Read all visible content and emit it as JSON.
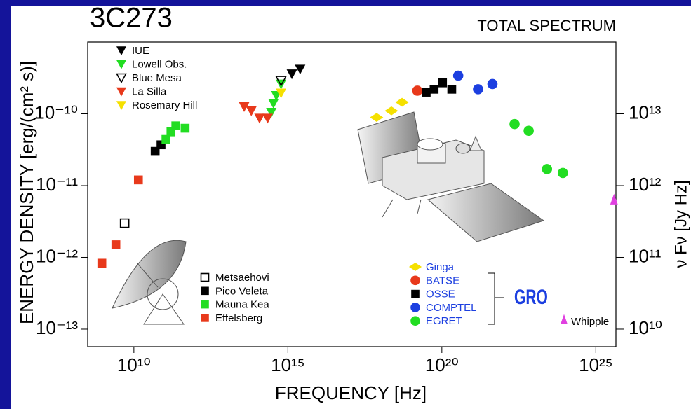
{
  "chart_data": {
    "type": "scatter",
    "title": "3C273",
    "subtitle": "TOTAL SPECTRUM",
    "x_label": "FREQUENCY [Hz]",
    "y_label": "ENERGY DENSITY [erg/(cm² s)]",
    "y2_label": "ν Fν [Jy Hz]",
    "x_log": true,
    "y_log": true,
    "xlim": [
      316000000.0,
      4.5e+25
    ],
    "ylim": [
      5.7e-14,
      1e-09
    ],
    "y2lim": [
      5700000000.0,
      100000000000000.0
    ],
    "xticks": [
      {
        "value": 10000000000.0,
        "label": "10¹⁰"
      },
      {
        "value": 1000000000000000.0,
        "label": "10¹⁵"
      },
      {
        "value": 1e+20,
        "label": "10²⁰"
      },
      {
        "value": 1e+25,
        "label": "10²⁵"
      }
    ],
    "yticks": [
      {
        "value": 1e-10,
        "label": "10⁻¹⁰"
      },
      {
        "value": 1e-11,
        "label": "10⁻¹¹"
      },
      {
        "value": 1e-12,
        "label": "10⁻¹²"
      },
      {
        "value": 1e-13,
        "label": "10⁻¹³"
      }
    ],
    "y2ticks": [
      {
        "value": 10000000000000.0,
        "label": "10¹³"
      },
      {
        "value": 1000000000000.0,
        "label": "10¹²"
      },
      {
        "value": 100000000000.0,
        "label": "10¹¹"
      },
      {
        "value": 10000000000.0,
        "label": "10¹⁰"
      }
    ],
    "annotations": [
      "GRO"
    ],
    "series": [
      {
        "name": "IUE",
        "marker": "triangle-down",
        "color": "#000000",
        "x": [
          1350000000000000.0,
          2500000000000000.0
        ],
        "y": [
          3.6e-10,
          4.2e-10
        ]
      },
      {
        "name": "Lowell Obs.",
        "marker": "triangle-down",
        "color": "#22dd22",
        "x": [
          290000000000000.0,
          340000000000000.0,
          420000000000000.0,
          600000000000000.0
        ],
        "y": [
          1.05e-10,
          1.4e-10,
          1.8e-10,
          2.6e-10
        ]
      },
      {
        "name": "Blue Mesa",
        "marker": "triangle-down-open",
        "color": "#000000",
        "x": [
          600000000000000.0
        ],
        "y": [
          2.9e-10
        ]
      },
      {
        "name": "La Silla",
        "marker": "triangle-down",
        "color": "#e8391b",
        "x": [
          38000000000000.0,
          65000000000000.0,
          120000000000000.0,
          220000000000000.0
        ],
        "y": [
          1.26e-10,
          1.1e-10,
          8.7e-11,
          8.7e-11
        ]
      },
      {
        "name": "Rosemary Hill",
        "marker": "triangle-down",
        "color": "#f5e000",
        "x": [
          600000000000000.0
        ],
        "y": [
          1.95e-10
        ]
      },
      {
        "name": "Metsaehovi",
        "marker": "square-open",
        "color": "#000000",
        "x": [
          5000000000.0
        ],
        "y": [
          3e-12
        ]
      },
      {
        "name": "Pico Veleta",
        "marker": "square",
        "color": "#000000",
        "x": [
          49000000000.0,
          76000000000.0
        ],
        "y": [
          3e-11,
          3.7e-11
        ]
      },
      {
        "name": "Mauna Kea",
        "marker": "square",
        "color": "#22dd22",
        "x": [
          110000000000.0,
          160000000000.0,
          230000000000.0,
          460000000000.0
        ],
        "y": [
          4.4e-11,
          5.6e-11,
          6.8e-11,
          6.3e-11
        ]
      },
      {
        "name": "Effelsberg",
        "marker": "square",
        "color": "#e8391b",
        "x": [
          910000000.0,
          2600000000.0,
          14000000000.0
        ],
        "y": [
          8.3e-13,
          1.5e-12,
          1.2e-11
        ]
      },
      {
        "name": "Ginga",
        "marker": "diamond",
        "color": "#f5e000",
        "x": [
          7.6e+17,
          2.3e+18,
          5.1e+18
        ],
        "y": [
          8.9e-11,
          1.1e-10,
          1.45e-10
        ]
      },
      {
        "name": "BATSE",
        "marker": "circle",
        "color": "#e8391b",
        "x": [
          1.6e+19
        ],
        "y": [
          2.1e-10
        ]
      },
      {
        "name": "OSSE",
        "marker": "square",
        "color": "#000000",
        "x": [
          3.1e+19,
          5.6e+19,
          1.05e+20,
          2.1e+20
        ],
        "y": [
          2e-10,
          2.2e-10,
          2.7e-10,
          2.2e-10
        ]
      },
      {
        "name": "COMPTEL",
        "marker": "circle",
        "color": "#1c3fe0",
        "x": [
          3.4e+20,
          1.5e+21,
          4.4e+21
        ],
        "y": [
          3.4e-10,
          2.2e-10,
          2.6e-10
        ]
      },
      {
        "name": "EGRET",
        "marker": "circle",
        "color": "#22dd22",
        "x": [
          2.3e+22,
          6.6e+22,
          2.6e+23,
          8.5e+23
        ],
        "y": [
          7.2e-11,
          5.8e-11,
          1.7e-11,
          1.5e-11
        ]
      },
      {
        "name": "Whipple",
        "marker": "triangle-up",
        "color": "#e040e0",
        "x": [
          3.9e+25
        ],
        "y": [
          6.3e-12
        ]
      }
    ]
  }
}
